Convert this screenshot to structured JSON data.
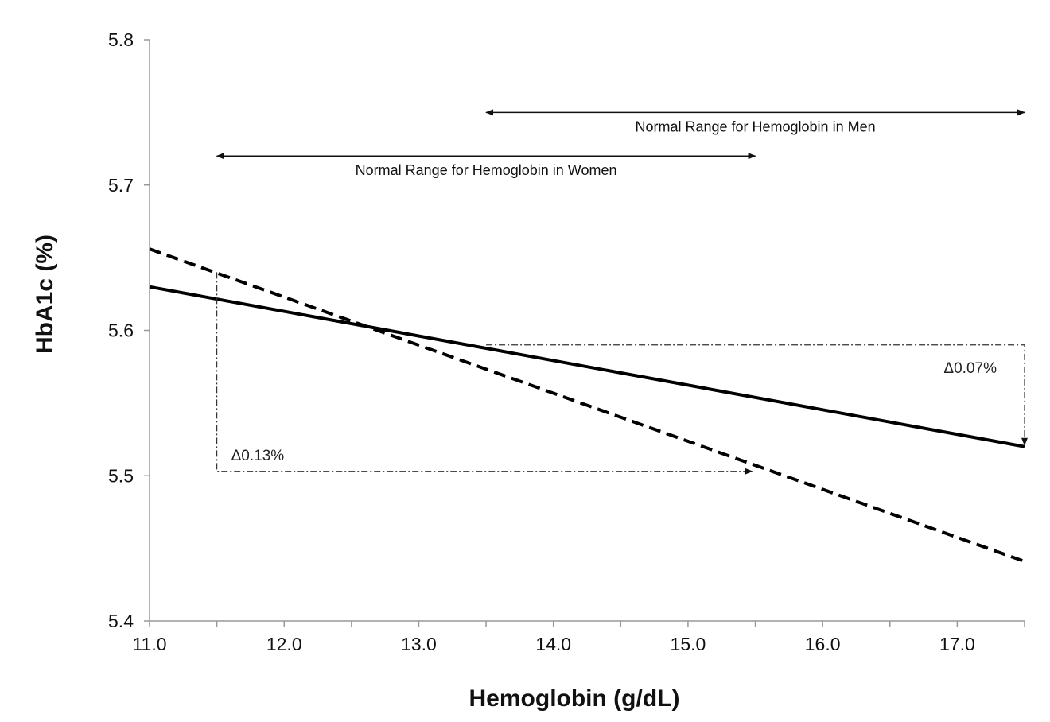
{
  "chart_data": {
    "type": "line",
    "title": "",
    "xlabel": "Hemoglobin (g/dL)",
    "ylabel": "HbA1c (%)",
    "xlim": [
      11.0,
      17.5
    ],
    "ylim": [
      5.4,
      5.8
    ],
    "x_ticks": [
      "11.0",
      "12.0",
      "13.0",
      "14.0",
      "15.0",
      "16.0",
      "17.0"
    ],
    "y_ticks": [
      "5.4",
      "5.5",
      "5.6",
      "5.7",
      "5.8"
    ],
    "grid": false,
    "legend": "none",
    "series": [
      {
        "style": "solid",
        "x": [
          11.0,
          17.5
        ],
        "y": [
          5.63,
          5.52
        ]
      },
      {
        "style": "dashed",
        "x": [
          11.0,
          17.5
        ],
        "y": [
          5.656,
          5.441
        ]
      }
    ],
    "ranges": [
      {
        "label": "Normal Range for Hemoglobin in Men",
        "from": 13.5,
        "to": 17.5,
        "y": 5.75
      },
      {
        "label": "Normal Range for Hemoglobin in Women",
        "from": 11.5,
        "to": 15.5,
        "y": 5.72
      }
    ],
    "annotations": [
      {
        "label": "Δ0.07%",
        "x_from": 13.5,
        "x_to": 17.5,
        "y_top": 5.59,
        "y_bottom": 5.52
      },
      {
        "label": "Δ0.13%",
        "x_from": 11.5,
        "x_to": 15.5,
        "y_top": 5.64,
        "y_bottom": 5.503
      }
    ]
  }
}
